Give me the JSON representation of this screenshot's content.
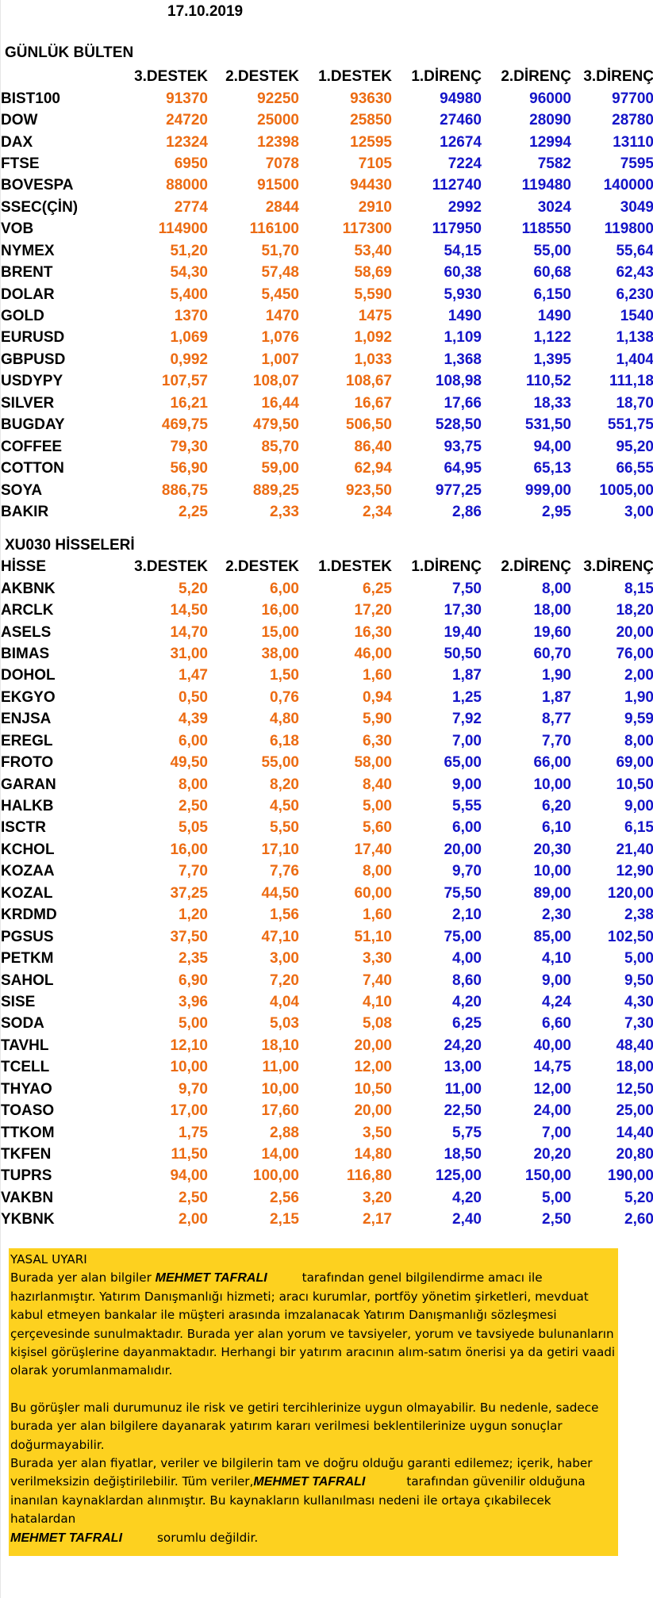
{
  "date": "17.10.2019",
  "bulletin_title": "GÜNLÜK BÜLTEN",
  "level_headers": [
    "3.DESTEK",
    "2.DESTEK",
    "1.DESTEK",
    "1.DİRENÇ",
    "2.DİRENÇ",
    "3.DİRENÇ"
  ],
  "indices": [
    {
      "name": "BIST100",
      "values": [
        "91370",
        "92250",
        "93630",
        "94980",
        "96000",
        "97700"
      ]
    },
    {
      "name": "DOW",
      "values": [
        "24720",
        "25000",
        "25850",
        "27460",
        "28090",
        "28780"
      ]
    },
    {
      "name": "DAX",
      "values": [
        "12324",
        "12398",
        "12595",
        "12674",
        "12994",
        "13110"
      ]
    },
    {
      "name": "FTSE",
      "values": [
        "6950",
        "7078",
        "7105",
        "7224",
        "7582",
        "7595"
      ]
    },
    {
      "name": "BOVESPA",
      "values": [
        "88000",
        "91500",
        "94430",
        "112740",
        "119480",
        "140000"
      ]
    },
    {
      "name": "SSEC(ÇİN)",
      "values": [
        "2774",
        "2844",
        "2910",
        "2992",
        "3024",
        "3049"
      ]
    },
    {
      "name": "VOB",
      "values": [
        "114900",
        "116100",
        "117300",
        "117950",
        "118550",
        "119800"
      ]
    },
    {
      "name": "NYMEX",
      "values": [
        "51,20",
        "51,70",
        "53,40",
        "54,15",
        "55,00",
        "55,64"
      ]
    },
    {
      "name": "BRENT",
      "values": [
        "54,30",
        "57,48",
        "58,69",
        "60,38",
        "60,68",
        "62,43"
      ]
    },
    {
      "name": "DOLAR",
      "values": [
        "5,400",
        "5,450",
        "5,590",
        "5,930",
        "6,150",
        "6,230"
      ]
    },
    {
      "name": "GOLD",
      "values": [
        "1370",
        "1470",
        "1475",
        "1490",
        "1490",
        "1540"
      ]
    },
    {
      "name": "EURUSD",
      "values": [
        "1,069",
        "1,076",
        "1,092",
        "1,109",
        "1,122",
        "1,138"
      ]
    },
    {
      "name": "GBPUSD",
      "values": [
        "0,992",
        "1,007",
        "1,033",
        "1,368",
        "1,395",
        "1,404"
      ]
    },
    {
      "name": "USDYPY",
      "values": [
        "107,57",
        "108,07",
        "108,67",
        "108,98",
        "110,52",
        "111,18"
      ]
    },
    {
      "name": "SILVER",
      "values": [
        "16,21",
        "16,44",
        "16,67",
        "17,66",
        "18,33",
        "18,70"
      ]
    },
    {
      "name": "BUGDAY",
      "values": [
        "469,75",
        "479,50",
        "506,50",
        "528,50",
        "531,50",
        "551,75"
      ]
    },
    {
      "name": "COFFEE",
      "values": [
        "79,30",
        "85,70",
        "86,40",
        "93,75",
        "94,00",
        "95,20"
      ]
    },
    {
      "name": "COTTON",
      "values": [
        "56,90",
        "59,00",
        "62,94",
        "64,95",
        "65,13",
        "66,55"
      ]
    },
    {
      "name": "SOYA",
      "values": [
        "886,75",
        "889,25",
        "923,50",
        "977,25",
        "999,00",
        "1005,00"
      ]
    },
    {
      "name": "BAKIR",
      "values": [
        "2,25",
        "2,33",
        "2,34",
        "2,86",
        "2,95",
        "3,00"
      ]
    }
  ],
  "stocks_title": "XU030 HİSSELERİ",
  "stocks_header": [
    "HİSSE",
    "3.DESTEK",
    "2.DESTEK",
    "1.DESTEK",
    "1.DİRENÇ",
    "2.DİRENÇ",
    "3.DİRENÇ"
  ],
  "stocks": [
    {
      "name": "AKBNK",
      "values": [
        "5,20",
        "6,00",
        "6,25",
        "7,50",
        "8,00",
        "8,15"
      ]
    },
    {
      "name": "ARCLK",
      "values": [
        "14,50",
        "16,00",
        "17,20",
        "17,30",
        "18,00",
        "18,20"
      ]
    },
    {
      "name": "ASELS",
      "values": [
        "14,70",
        "15,00",
        "16,30",
        "19,40",
        "19,60",
        "20,00"
      ]
    },
    {
      "name": "BIMAS",
      "values": [
        "31,00",
        "38,00",
        "46,00",
        "50,50",
        "60,70",
        "76,00"
      ]
    },
    {
      "name": "DOHOL",
      "values": [
        "1,47",
        "1,50",
        "1,60",
        "1,87",
        "1,90",
        "2,00"
      ]
    },
    {
      "name": "EKGYO",
      "values": [
        "0,50",
        "0,76",
        "0,94",
        "1,25",
        "1,87",
        "1,90"
      ]
    },
    {
      "name": "ENJSA",
      "values": [
        "4,39",
        "4,80",
        "5,90",
        "7,92",
        "8,77",
        "9,59"
      ]
    },
    {
      "name": "EREGL",
      "values": [
        "6,00",
        "6,18",
        "6,30",
        "7,00",
        "7,70",
        "8,00"
      ]
    },
    {
      "name": "FROTO",
      "values": [
        "49,50",
        "55,00",
        "58,00",
        "65,00",
        "66,00",
        "69,00"
      ]
    },
    {
      "name": "GARAN",
      "values": [
        "8,00",
        "8,20",
        "8,40",
        "9,00",
        "10,00",
        "10,50"
      ]
    },
    {
      "name": "HALKB",
      "values": [
        "2,50",
        "4,50",
        "5,00",
        "5,55",
        "6,20",
        "9,00"
      ]
    },
    {
      "name": "ISCTR",
      "values": [
        "5,05",
        "5,50",
        "5,60",
        "6,00",
        "6,10",
        "6,15"
      ]
    },
    {
      "name": "KCHOL",
      "values": [
        "16,00",
        "17,10",
        "17,40",
        "20,00",
        "20,30",
        "21,40"
      ]
    },
    {
      "name": "KOZAA",
      "values": [
        "7,70",
        "7,76",
        "8,00",
        "9,70",
        "10,00",
        "12,90"
      ]
    },
    {
      "name": "KOZAL",
      "values": [
        "37,25",
        "44,50",
        "60,00",
        "75,50",
        "89,00",
        "120,00"
      ]
    },
    {
      "name": "KRDMD",
      "values": [
        "1,20",
        "1,56",
        "1,60",
        "2,10",
        "2,30",
        "2,38"
      ]
    },
    {
      "name": "PGSUS",
      "values": [
        "37,50",
        "47,10",
        "51,10",
        "75,00",
        "85,00",
        "102,50"
      ]
    },
    {
      "name": "PETKM",
      "values": [
        "2,35",
        "3,00",
        "3,30",
        "4,00",
        "4,10",
        "5,00"
      ]
    },
    {
      "name": "SAHOL",
      "values": [
        "6,90",
        "7,20",
        "7,40",
        "8,60",
        "9,00",
        "9,50"
      ]
    },
    {
      "name": "SISE",
      "values": [
        "3,96",
        "4,04",
        "4,10",
        "4,20",
        "4,24",
        "4,30"
      ]
    },
    {
      "name": "SODA",
      "values": [
        "5,00",
        "5,03",
        "5,08",
        "6,25",
        "6,60",
        "7,30"
      ]
    },
    {
      "name": "TAVHL",
      "values": [
        "12,10",
        "18,10",
        "20,00",
        "24,20",
        "40,00",
        "48,40"
      ]
    },
    {
      "name": "TCELL",
      "values": [
        "10,00",
        "11,00",
        "12,00",
        "13,00",
        "14,75",
        "18,00"
      ]
    },
    {
      "name": "THYAO",
      "values": [
        "9,70",
        "10,00",
        "10,50",
        "11,00",
        "12,00",
        "12,50"
      ]
    },
    {
      "name": "TOASO",
      "values": [
        "17,00",
        "17,60",
        "20,00",
        "22,50",
        "24,00",
        "25,00"
      ]
    },
    {
      "name": "TTKOM",
      "values": [
        "1,75",
        "2,88",
        "3,50",
        "5,75",
        "7,00",
        "14,40"
      ]
    },
    {
      "name": "TKFEN",
      "values": [
        "11,50",
        "14,00",
        "14,80",
        "18,50",
        "20,20",
        "20,80"
      ]
    },
    {
      "name": "TUPRS",
      "values": [
        "94,00",
        "100,00",
        "116,80",
        "125,00",
        "150,00",
        "190,00"
      ]
    },
    {
      "name": "VAKBN",
      "values": [
        "2,50",
        "2,56",
        "3,20",
        "4,20",
        "5,00",
        "5,20"
      ]
    },
    {
      "name": "YKBNK",
      "values": [
        "2,00",
        "2,15",
        "2,17",
        "2,40",
        "2,50",
        "2,60"
      ]
    }
  ],
  "disclaimer": {
    "title": "YASAL UYARI",
    "p1_before": "Burada yer alan bilgiler",
    "name": "MEHMET TAFRALI",
    "p1_after": "tarafından genel bilgilendirme amacı ile hazırlanmıştır. Yatırım Danışmanlığı hizmeti; aracı kurumlar, portföy yönetim şirketleri, mevduat kabul etmeyen bankalar ile müşteri arasında imzalanacak Yatırım Danışmanlığı sözleşmesi çerçevesinde sunulmaktadır. Burada yer alan yorum ve tavsiyeler, yorum ve tavsiyede bulunanların kişisel görüşlerine dayanmaktadır. Herhangi bir yatırım aracının alım-satım önerisi ya da getiri vaadi olarak yorumlanmamalıdır.",
    "p2": "Bu görüşler mali durumunuz ile risk ve getiri tercihlerinize uygun olmayabilir. Bu nedenle, sadece burada yer alan bilgilere dayanarak yatırım kararı verilmesi beklentilerinize uygun sonuçlar doğurmayabilir.",
    "p3_before": "Burada yer alan fiyatlar, veriler ve bilgilerin tam ve doğru olduğu garanti edilemez; içerik, haber verilmeksizin değiştirilebilir. Tüm veriler,",
    "p3_after": "tarafından güvenilir olduğuna inanılan kaynaklardan alınmıştır. Bu kaynakların kullanılması nedeni ile ortaya çıkabilecek hatalardan",
    "p3_end": "sorumlu değildir."
  },
  "colors": {
    "support": "#ec6b12",
    "resistance": "#1414c8",
    "disclaimer_bg": "#fdd11f"
  }
}
